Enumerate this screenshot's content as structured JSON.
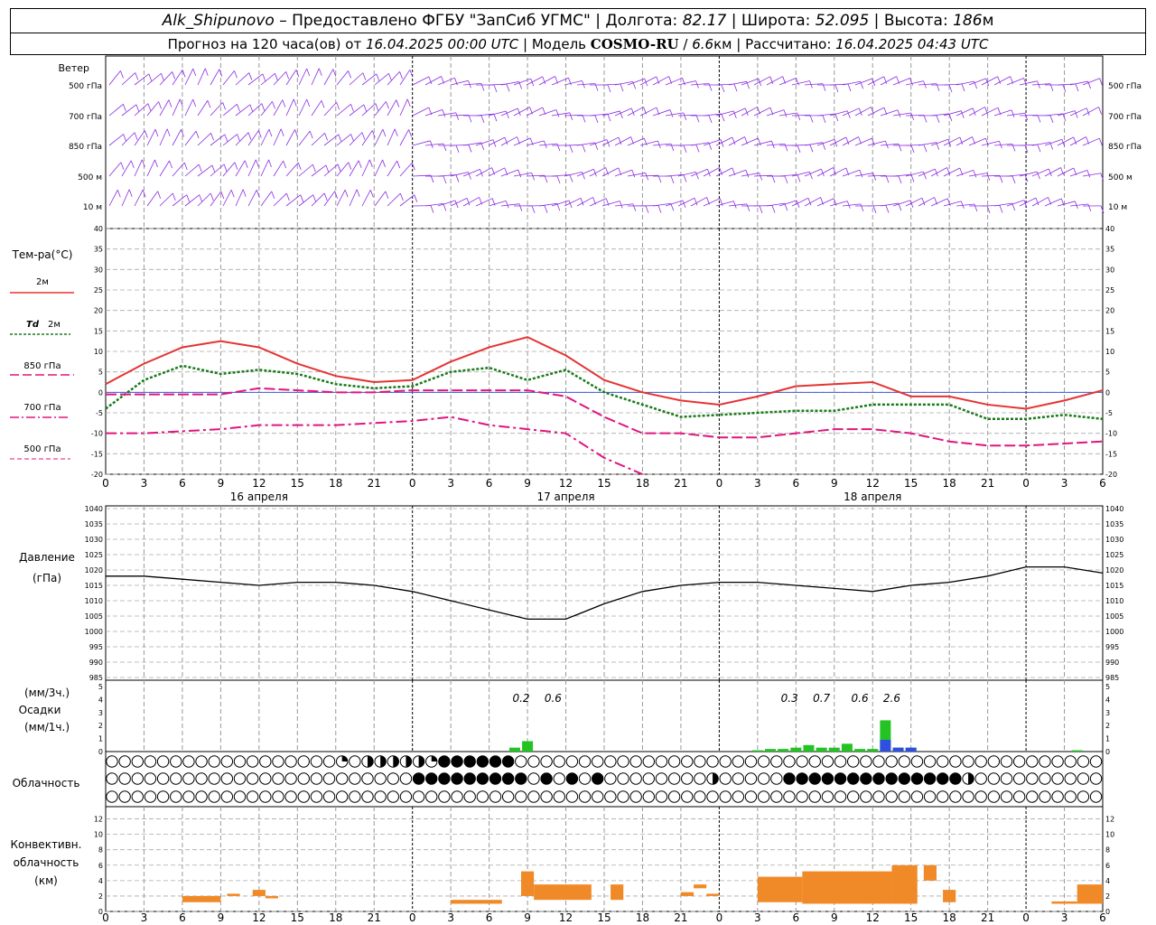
{
  "header": {
    "station": "Alk_Shipunovo",
    "provider": "– Предоставлено ФГБУ \"ЗапСиб УГМС\"",
    "lon_label": "Долгота:",
    "lon": "82.17",
    "lat_label": "Широта:",
    "lat": "52.095",
    "alt_label": "Высота:",
    "alt": "186",
    "alt_unit": "м",
    "forecast_label": "Прогноз на 120 часа(ов) от",
    "run_time": "16.04.2025 00:00 UTC",
    "model_label": "Модель",
    "model": "COSMO-RU",
    "model_res": "6.6",
    "model_res_unit": "км",
    "calc_label": "Рассчитано:",
    "calc_time": "16.04.2025 04:43 UTC"
  },
  "panels": {
    "wind": {
      "title": "Ветер",
      "levels": [
        "500 гПа",
        "700 гПа",
        "850 гПа",
        "500 м",
        "10 м"
      ],
      "color": "#8a2be2"
    },
    "temp": {
      "title": "Тем-ра(°C)",
      "legend": [
        {
          "label": "2м",
          "color": "#e53333",
          "style": "solid"
        },
        {
          "label_a": "Td",
          "label_b": "2м",
          "color": "#1a7a1a",
          "style": "dotted"
        },
        {
          "label": "850 гПа",
          "color": "#e0157f",
          "style": "dash"
        },
        {
          "label": "700 гПа",
          "color": "#e0157f",
          "style": "dashdot"
        },
        {
          "label": "500 гПа",
          "color": "#e0157f",
          "style": "dashed-small"
        }
      ]
    },
    "pressure": {
      "title_a": "Давление",
      "title_b": "(гПа)"
    },
    "precip": {
      "label_a": "(мм/3ч.)",
      "label_b": "Осадки",
      "label_c": "(мм/1ч.)"
    },
    "cloud": {
      "title": "Облачность"
    },
    "conv": {
      "title_a": "Конвективн.",
      "title_b": "облачность",
      "title_c": "(км)"
    }
  },
  "time_axis": {
    "hour_labels": [
      "0",
      "3",
      "6",
      "9",
      "12",
      "15",
      "18",
      "21",
      "0",
      "3",
      "6",
      "9",
      "12",
      "15",
      "18",
      "21",
      "0",
      "3",
      "6",
      "9",
      "12",
      "15",
      "18",
      "21",
      "0",
      "3",
      "6"
    ],
    "date_labels": [
      "16 апреля",
      "17 апреля",
      "18 апреля"
    ]
  },
  "chart_data": [
    {
      "type": "line",
      "title": "Тем-ра(°C)",
      "ylim": [
        -20,
        40
      ],
      "yticks": [
        "40",
        "35",
        "30",
        "25",
        "20",
        "15",
        "10",
        "5",
        "0",
        "-5",
        "-10",
        "-15",
        "-20"
      ],
      "x_hours": [
        0,
        3,
        6,
        9,
        12,
        15,
        18,
        21,
        24,
        27,
        30,
        33,
        36,
        39,
        42,
        45,
        48,
        51,
        54,
        57,
        60,
        63,
        66,
        69,
        72,
        75,
        78
      ],
      "series": [
        {
          "name": "2м",
          "values": [
            2,
            7,
            11,
            12.5,
            11,
            7,
            4,
            2.5,
            3,
            7.5,
            11,
            13.5,
            9,
            3,
            0,
            -2,
            -3,
            -1,
            1.5,
            2,
            2.5,
            -1,
            -1,
            -3,
            -4,
            -2,
            0.5
          ]
        },
        {
          "name": "Td 2м",
          "values": [
            -4,
            3,
            6.5,
            4.5,
            5.5,
            4.5,
            2,
            1,
            1.5,
            5,
            6,
            3,
            5.5,
            0,
            -3,
            -6,
            -5.5,
            -5,
            -4.5,
            -4.5,
            -3,
            -3,
            -3,
            -6.5,
            -6.5,
            -5.5,
            -6.5
          ]
        },
        {
          "name": "850 гПа",
          "values": [
            -0.5,
            -0.5,
            -0.5,
            -0.5,
            1,
            0.5,
            0,
            0,
            0.5,
            0.5,
            0.5,
            0.5,
            -1,
            -6,
            -10,
            -10,
            -11,
            -11,
            -10,
            -9,
            -9,
            -10,
            -12,
            -13,
            -13,
            -12.5,
            -12
          ]
        },
        {
          "name": "700 гПа",
          "values": [
            -10,
            -10,
            -9.5,
            -9,
            -8,
            -8,
            -8,
            -7.5,
            -7,
            -6,
            -8,
            -9,
            -10,
            -16,
            -21
          ]
        }
      ]
    },
    {
      "type": "line",
      "title": "Давление",
      "ylim": [
        985,
        1040
      ],
      "yticks": [
        "1040",
        "1035",
        "1030",
        "1025",
        "1020",
        "1015",
        "1010",
        "1005",
        "1000",
        "995",
        "990",
        "985"
      ],
      "x_hours": [
        0,
        3,
        6,
        9,
        12,
        15,
        18,
        21,
        24,
        27,
        30,
        33,
        36,
        39,
        42,
        45,
        48,
        51,
        54,
        57,
        60,
        63,
        66,
        69,
        72,
        75,
        78
      ],
      "series": [
        {
          "name": "",
          "values": [
            1018,
            1018,
            1017,
            1016,
            1015,
            1016,
            1016,
            1015,
            1013,
            1010,
            1007,
            1004,
            1004,
            1009,
            1013,
            1015,
            1016,
            1016,
            1015,
            1014,
            1013,
            1015,
            1016,
            1018,
            1021,
            1021,
            1019
          ]
        }
      ]
    },
    {
      "type": "bar",
      "title": "Осадки",
      "ylim": [
        0,
        5
      ],
      "yticks": [
        "5",
        "4",
        "3",
        "2",
        "1",
        "0"
      ],
      "annotations": [
        {
          "x": 32.5,
          "text": "0.2"
        },
        {
          "x": 35,
          "text": "0.6"
        },
        {
          "x": 53.5,
          "text": "0.3"
        },
        {
          "x": 56,
          "text": "0.7"
        },
        {
          "x": 59,
          "text": "0.6"
        },
        {
          "x": 61.5,
          "text": "2.6"
        }
      ],
      "series": [
        {
          "name": "",
          "color": "#22c322",
          "x_hours": [
            32,
            33,
            51,
            52,
            53,
            54,
            55,
            56,
            57,
            58,
            59,
            60,
            61,
            62,
            63,
            76
          ],
          "values": [
            0.3,
            0.8,
            0.1,
            0.2,
            0.2,
            0.3,
            0.5,
            0.3,
            0.3,
            0.6,
            0.2,
            0.2,
            2.4,
            0.3,
            0.3,
            0.1
          ]
        },
        {
          "name": "",
          "color": "#2f4fe0",
          "x_hours": [
            61,
            62,
            63
          ],
          "values": [
            0.9,
            0.3,
            0.3
          ]
        }
      ]
    },
    {
      "type": "bar",
      "title": "Конвективн. облачность",
      "ylim": [
        0,
        13
      ],
      "yticks": [
        "12",
        "10",
        "8",
        "6",
        "4",
        "2",
        "0"
      ],
      "segments": [
        {
          "from": 6,
          "to": 9,
          "bottom": 1.2,
          "top": 2
        },
        {
          "from": 9.5,
          "to": 10.5,
          "bottom": 2,
          "top": 2.3
        },
        {
          "from": 11.5,
          "to": 12.5,
          "bottom": 2,
          "top": 2.8
        },
        {
          "from": 12.5,
          "to": 13.5,
          "bottom": 1.7,
          "top": 2
        },
        {
          "from": 27,
          "to": 31,
          "bottom": 1,
          "top": 1.5
        },
        {
          "from": 32.5,
          "to": 33.5,
          "bottom": 2,
          "top": 5.2
        },
        {
          "from": 33.5,
          "to": 38,
          "bottom": 1.5,
          "top": 3.5
        },
        {
          "from": 39.5,
          "to": 40.5,
          "bottom": 1.5,
          "top": 3.5
        },
        {
          "from": 45,
          "to": 46,
          "bottom": 2,
          "top": 2.5
        },
        {
          "from": 46,
          "to": 47,
          "bottom": 3,
          "top": 3.5
        },
        {
          "from": 47,
          "to": 48,
          "bottom": 2,
          "top": 2.3
        },
        {
          "from": 51,
          "to": 54.5,
          "bottom": 1.2,
          "top": 4.5
        },
        {
          "from": 54.5,
          "to": 61.5,
          "bottom": 1,
          "top": 5.2
        },
        {
          "from": 61.5,
          "to": 63.5,
          "bottom": 1,
          "top": 6
        },
        {
          "from": 64,
          "to": 65,
          "bottom": 4,
          "top": 6
        },
        {
          "from": 65.5,
          "to": 66.5,
          "bottom": 1.2,
          "top": 2.8
        },
        {
          "from": 74,
          "to": 76,
          "bottom": 1,
          "top": 1.3
        },
        {
          "from": 76,
          "to": 78,
          "bottom": 1,
          "top": 3.5
        }
      ]
    }
  ],
  "cloud_rows": {
    "low": "000000000000000000201111123333330000000000000000000000000000000000000000000000000",
    "mid": "000000000000000000000000333333333030303000000001000003333333333333310000000000000",
    "high": "000000000000000000000000000000000000000000000000000000000000000000000000000000000"
  },
  "colors": {
    "temp2m": "#e53333",
    "td": "#1a7a1a",
    "p850": "#e0157f",
    "p700": "#e0157f",
    "pressure": "#000000",
    "precip_green": "#22c322",
    "precip_blue": "#2f4fe0",
    "conv": "#f08a28",
    "wind": "#8a2be2"
  }
}
